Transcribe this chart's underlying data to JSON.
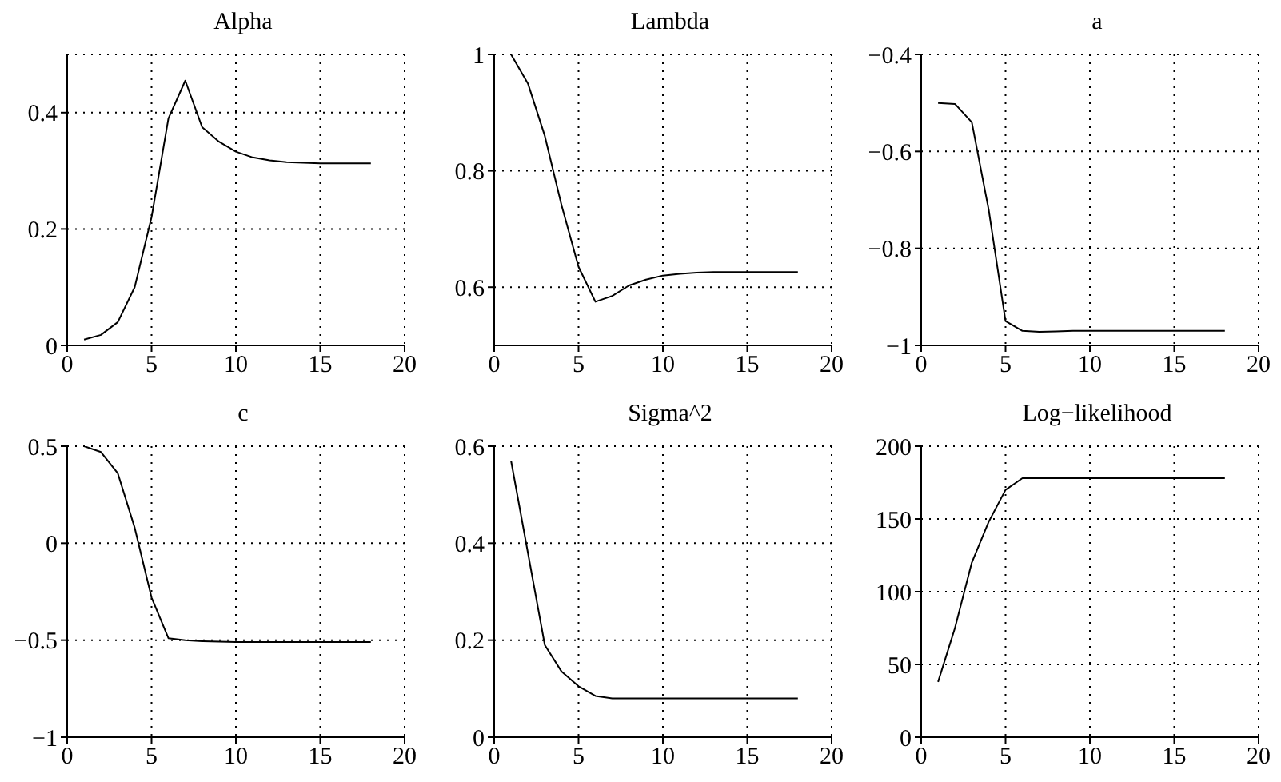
{
  "chart_data": [
    {
      "type": "line",
      "title": "Alpha",
      "x": [
        1,
        2,
        3,
        4,
        5,
        6,
        7,
        8,
        9,
        10,
        11,
        12,
        13,
        14,
        15,
        16,
        17,
        18
      ],
      "series": [
        {
          "color": "#000000",
          "values": [
            0.01,
            0.018,
            0.04,
            0.1,
            0.22,
            0.39,
            0.455,
            0.375,
            0.35,
            0.333,
            0.323,
            0.318,
            0.315,
            0.314,
            0.313,
            0.313,
            0.313,
            0.313
          ]
        }
      ],
      "xlim": [
        0,
        20
      ],
      "xticks": [
        0,
        5,
        10,
        15,
        20
      ],
      "ylim": [
        0,
        0.5
      ],
      "yticks": [
        0,
        0.2,
        0.4
      ],
      "grid": true,
      "legend": false,
      "marker": "none",
      "line_style": "solid"
    },
    {
      "type": "line",
      "title": "Lambda",
      "x": [
        1,
        2,
        3,
        4,
        5,
        6,
        7,
        8,
        9,
        10,
        11,
        12,
        13,
        14,
        15,
        16,
        17,
        18
      ],
      "series": [
        {
          "color": "#000000",
          "values": [
            1.0,
            0.95,
            0.86,
            0.74,
            0.635,
            0.575,
            0.585,
            0.603,
            0.613,
            0.62,
            0.623,
            0.625,
            0.626,
            0.626,
            0.626,
            0.626,
            0.626,
            0.626
          ]
        }
      ],
      "xlim": [
        0,
        20
      ],
      "xticks": [
        0,
        5,
        10,
        15,
        20
      ],
      "ylim": [
        0.5,
        1
      ],
      "yticks": [
        0.6,
        0.8,
        1
      ],
      "grid": true,
      "legend": false,
      "marker": "none",
      "line_style": "solid"
    },
    {
      "type": "line",
      "title": "a",
      "x": [
        1,
        2,
        3,
        4,
        5,
        6,
        7,
        8,
        9,
        10,
        11,
        12,
        13,
        14,
        15,
        16,
        17,
        18
      ],
      "series": [
        {
          "color": "#000000",
          "values": [
            -0.5,
            -0.502,
            -0.54,
            -0.72,
            -0.95,
            -0.97,
            -0.972,
            -0.971,
            -0.97,
            -0.97,
            -0.97,
            -0.97,
            -0.97,
            -0.97,
            -0.97,
            -0.97,
            -0.97,
            -0.97
          ]
        }
      ],
      "xlim": [
        0,
        20
      ],
      "xticks": [
        0,
        5,
        10,
        15,
        20
      ],
      "ylim": [
        -1,
        -0.4
      ],
      "yticks": [
        -1,
        -0.8,
        -0.6,
        -0.4
      ],
      "grid": true,
      "legend": false,
      "marker": "none",
      "line_style": "solid"
    },
    {
      "type": "line",
      "title": "c",
      "x": [
        1,
        2,
        3,
        4,
        5,
        6,
        7,
        8,
        9,
        10,
        11,
        12,
        13,
        14,
        15,
        16,
        17,
        18
      ],
      "series": [
        {
          "color": "#000000",
          "values": [
            0.5,
            0.47,
            0.36,
            0.08,
            -0.28,
            -0.49,
            -0.5,
            -0.505,
            -0.508,
            -0.51,
            -0.51,
            -0.51,
            -0.51,
            -0.51,
            -0.51,
            -0.51,
            -0.51,
            -0.51
          ]
        }
      ],
      "xlim": [
        0,
        20
      ],
      "xticks": [
        0,
        5,
        10,
        15,
        20
      ],
      "ylim": [
        -1,
        0.5
      ],
      "yticks": [
        -1,
        -0.5,
        0,
        0.5
      ],
      "grid": true,
      "legend": false,
      "marker": "none",
      "line_style": "solid"
    },
    {
      "type": "line",
      "title": "Sigma^2",
      "x": [
        1,
        2,
        3,
        4,
        5,
        6,
        7,
        8,
        9,
        10,
        11,
        12,
        13,
        14,
        15,
        16,
        17,
        18
      ],
      "series": [
        {
          "color": "#000000",
          "values": [
            0.57,
            0.38,
            0.19,
            0.135,
            0.105,
            0.085,
            0.08,
            0.08,
            0.08,
            0.08,
            0.08,
            0.08,
            0.08,
            0.08,
            0.08,
            0.08,
            0.08,
            0.08
          ]
        }
      ],
      "xlim": [
        0,
        20
      ],
      "xticks": [
        0,
        5,
        10,
        15,
        20
      ],
      "ylim": [
        0,
        0.6
      ],
      "yticks": [
        0,
        0.2,
        0.4,
        0.6
      ],
      "grid": true,
      "legend": false,
      "marker": "none",
      "line_style": "solid"
    },
    {
      "type": "line",
      "title": "Log−likelihood",
      "x": [
        1,
        2,
        3,
        4,
        5,
        6,
        7,
        8,
        9,
        10,
        11,
        12,
        13,
        14,
        15,
        16,
        17,
        18
      ],
      "series": [
        {
          "color": "#000000",
          "values": [
            38,
            75,
            120,
            148,
            170,
            178,
            178,
            178,
            178,
            178,
            178,
            178,
            178,
            178,
            178,
            178,
            178,
            178
          ]
        }
      ],
      "xlim": [
        0,
        20
      ],
      "xticks": [
        0,
        5,
        10,
        15,
        20
      ],
      "ylim": [
        0,
        200
      ],
      "yticks": [
        0,
        50,
        100,
        150,
        200
      ],
      "grid": true,
      "legend": false,
      "marker": "none",
      "line_style": "solid"
    }
  ]
}
